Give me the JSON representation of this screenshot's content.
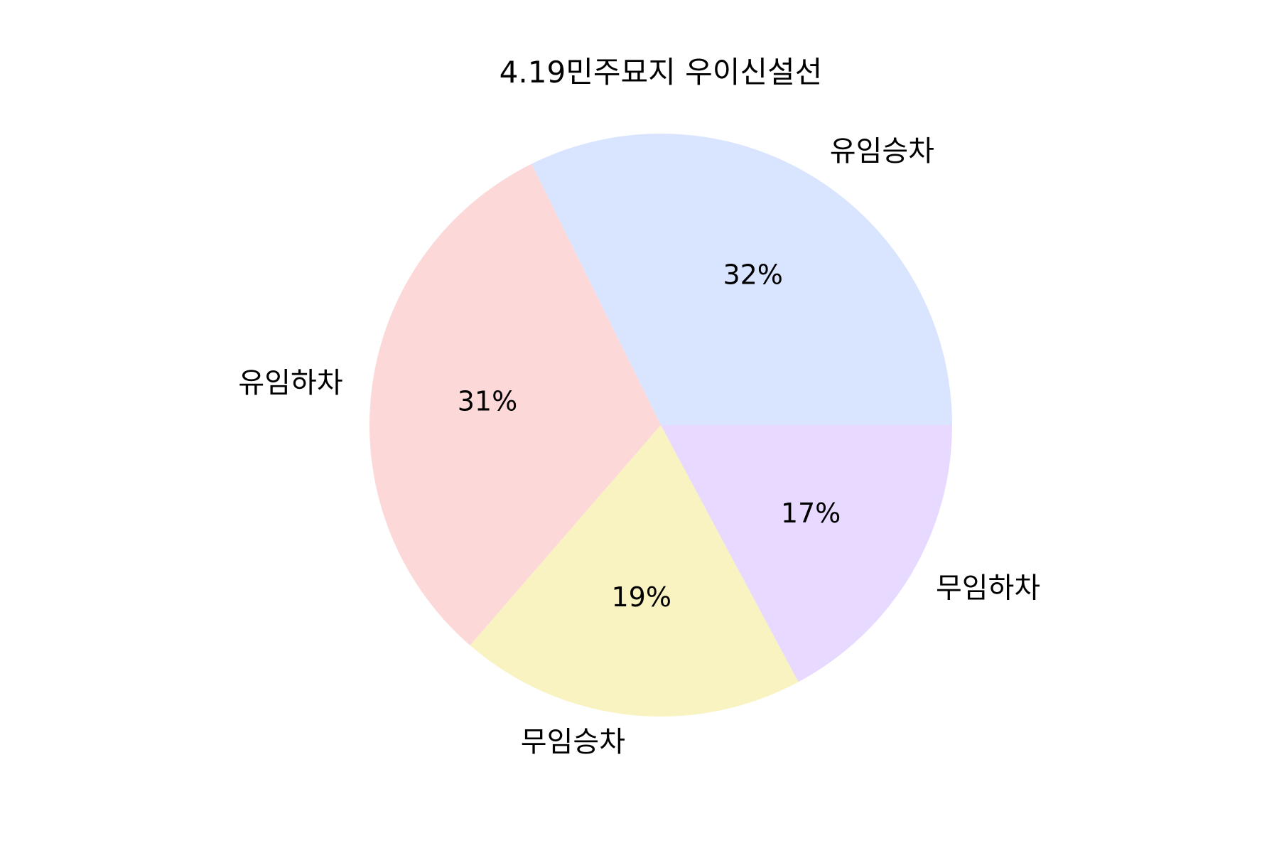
{
  "chart_data": {
    "type": "pie",
    "title": "4.19민주묘지 우이신설선",
    "slices": [
      {
        "label": "유임승차",
        "value": 32,
        "pct_label": "32%",
        "color": "#d9e4ff"
      },
      {
        "label": "유임하차",
        "value": 31,
        "pct_label": "31%",
        "color": "#fdd8d8"
      },
      {
        "label": "무임승차",
        "value": 19,
        "pct_label": "19%",
        "color": "#f9f3c1"
      },
      {
        "label": "무임하차",
        "value": 17,
        "pct_label": "17%",
        "color": "#e7d9ff"
      }
    ],
    "start_angle_deg": 0,
    "direction": "counterclockwise",
    "legend": "none"
  }
}
